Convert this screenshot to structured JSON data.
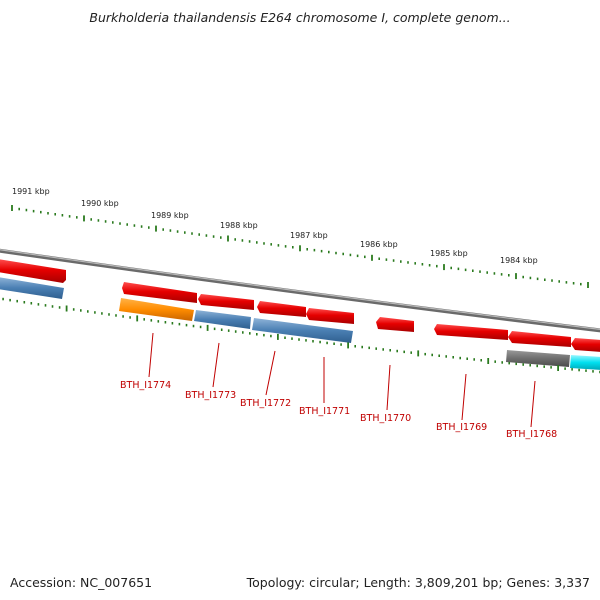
{
  "title": "Burkholderia thailandensis E264 chromosome I, complete genom...",
  "footer": {
    "accession": "Accession: NC_007651",
    "topology": "Topology: circular; Length: 3,809,201 bp; Genes: 3,337"
  },
  "colors": {
    "forward_gene": "#e60000",
    "reverse_blue": "#4a7fb3",
    "reverse_orange": "#ff8c00",
    "reverse_gray": "#6e6e6e",
    "reverse_cyan": "#00e0f0",
    "backbone": "#888888",
    "ticks": "#2a7a1e",
    "labels": "#c00000"
  },
  "kbp_labels": [
    "1991 kbp",
    "1990 kbp",
    "1989 kbp",
    "1988 kbp",
    "1987 kbp",
    "1986 kbp",
    "1985 kbp",
    "1984 kbp"
  ],
  "gene_labels": [
    "BTH_I1774",
    "BTH_I1773",
    "BTH_I1772",
    "BTH_I1771",
    "BTH_I1770",
    "BTH_I1769",
    "BTH_I1768"
  ]
}
